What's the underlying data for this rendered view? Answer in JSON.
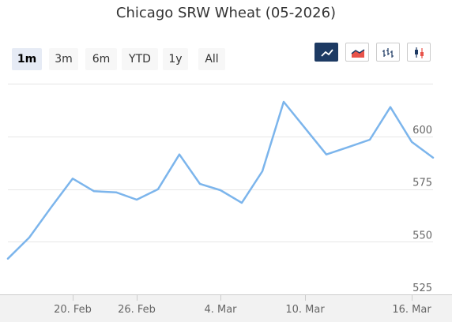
{
  "title": "Chicago SRW Wheat (05-2026)",
  "range_selector": {
    "buttons": [
      "1m",
      "3m",
      "6m",
      "YTD",
      "1y",
      "All"
    ],
    "selected": "1m"
  },
  "chart_type_buttons": [
    {
      "icon": "line-chart-icon",
      "active": true
    },
    {
      "icon": "area-chart-icon",
      "active": false
    },
    {
      "icon": "ohlc-chart-icon",
      "active": false
    },
    {
      "icon": "candlestick-chart-icon",
      "active": false
    }
  ],
  "colors": {
    "series": "#7cb5ec",
    "active_button": "#1d3a63",
    "selected_range": "#e6ebf5"
  },
  "chart_data": {
    "type": "line",
    "title": "Chicago SRW Wheat (05-2026)",
    "x": [
      "2026-02-17",
      "2026-02-18",
      "2026-02-19",
      "2026-02-20",
      "2026-02-23",
      "2026-02-24",
      "2026-02-25",
      "2026-02-26",
      "2026-02-27",
      "2026-03-02",
      "2026-03-03",
      "2026-03-04",
      "2026-03-05",
      "2026-03-06",
      "2026-03-09",
      "2026-03-10",
      "2026-03-11",
      "2026-03-12",
      "2026-03-13",
      "2026-03-16",
      "2026-03-17"
    ],
    "series": [
      {
        "values": [
          542,
          552,
          566.5,
          580,
          574,
          573.5,
          570,
          575,
          591.5,
          577.5,
          574.5,
          568.5,
          583.5,
          616.5,
          604,
          591.5,
          595,
          598.5,
          614,
          597.5,
          590
        ]
      }
    ],
    "xticks": [
      "20. Feb",
      "26. Feb",
      "4. Mar",
      "10. Mar",
      "16. Mar"
    ],
    "yticks": [
      "525",
      "550",
      "575",
      "600"
    ],
    "ylim": [
      520,
      625
    ],
    "grid": true,
    "legend": "none"
  }
}
